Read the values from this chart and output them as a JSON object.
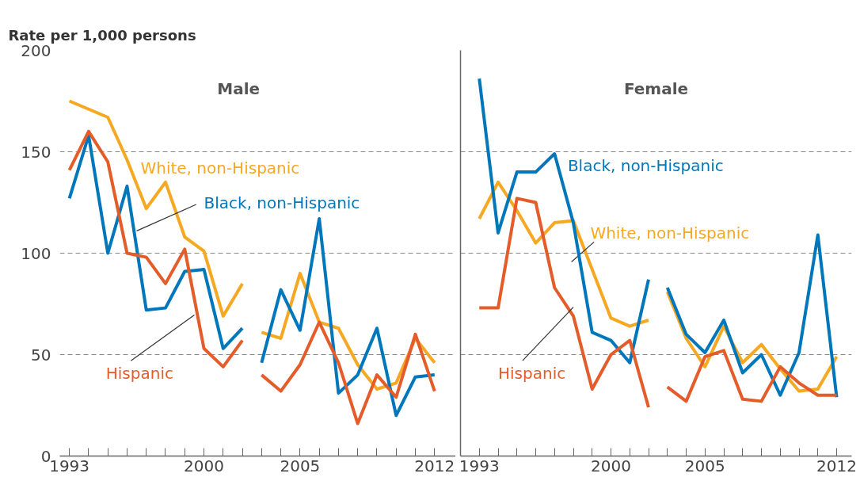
{
  "chart_data": [
    {
      "type": "line",
      "title": "Male",
      "ylabel": "Rate per 1,000 persons",
      "xlim": [
        1992.5,
        2013.1
      ],
      "xticks": [
        1993,
        {
          "value": 1994,
          "label": null
        },
        {
          "value": 1995,
          "label": null
        },
        {
          "value": 1996,
          "label": null
        },
        {
          "value": 1997,
          "label": null
        },
        {
          "value": 1998,
          "label": null
        },
        {
          "value": 1999,
          "label": null
        },
        2000,
        {
          "value": 2001,
          "label": null
        },
        {
          "value": 2002,
          "label": null
        },
        {
          "value": 2003,
          "label": null
        },
        {
          "value": 2004,
          "label": null
        },
        2005,
        {
          "value": 2006,
          "label": null
        },
        {
          "value": 2007,
          "label": null
        },
        {
          "value": 2008,
          "label": null
        },
        {
          "value": 2009,
          "label": null
        },
        {
          "value": 2010,
          "label": null
        },
        {
          "value": 2011,
          "label": null
        },
        2012
      ],
      "ylim": [
        0,
        200
      ],
      "yticks": [
        0,
        50,
        100,
        150,
        200
      ],
      "grid": "y",
      "line_style": "solid",
      "series": [
        {
          "name": "White, non-Hispanic",
          "color": "#f7a823",
          "x": [
            1993,
            1994,
            1995,
            1996,
            1997,
            1998,
            1999,
            2000,
            2001,
            2002
          ],
          "values": [
            175,
            171,
            167,
            146,
            122,
            135,
            108,
            101,
            69,
            85
          ]
        },
        {
          "name": "Black, non-Hispanic",
          "color": "#0077bb",
          "x": [
            1993,
            1994,
            1995,
            1996,
            1997,
            1998,
            1999,
            2000,
            2001,
            2002
          ],
          "values": [
            127,
            158,
            100,
            133,
            72,
            73,
            91,
            92,
            53,
            63
          ]
        },
        {
          "name": "Hispanic",
          "color": "#e35c29",
          "x": [
            1993,
            1994,
            1995,
            1996,
            1997,
            1998,
            1999,
            2000,
            2001,
            2002
          ],
          "values": [
            141,
            160,
            145,
            100,
            98,
            85,
            102,
            53,
            44,
            57
          ]
        },
        {
          "color": "#f7a823",
          "x": [
            2003,
            2004,
            2005,
            2006,
            2007,
            2008,
            2009,
            2010,
            2011,
            2012
          ],
          "values": [
            61,
            58,
            90,
            66,
            63,
            45,
            33,
            36,
            58,
            46
          ]
        },
        {
          "color": "#0077bb",
          "x": [
            2003,
            2004,
            2005,
            2006,
            2007,
            2008,
            2009,
            2010,
            2011,
            2012
          ],
          "values": [
            46,
            82,
            62,
            117,
            31,
            40,
            63,
            20,
            39,
            40
          ]
        },
        {
          "color": "#e35c29",
          "x": [
            2003,
            2004,
            2005,
            2006,
            2007,
            2008,
            2009,
            2010,
            2011,
            2012
          ],
          "values": [
            40,
            32,
            45,
            66,
            46,
            16,
            40,
            29,
            60,
            32
          ]
        }
      ]
    },
    {
      "type": "line",
      "title": "Female",
      "xlim": [
        1992.0,
        2012.8
      ],
      "xticks": [
        1993,
        {
          "value": 1994,
          "label": null
        },
        {
          "value": 1995,
          "label": null
        },
        {
          "value": 1996,
          "label": null
        },
        {
          "value": 1997,
          "label": null
        },
        {
          "value": 1998,
          "label": null
        },
        {
          "value": 1999,
          "label": null
        },
        2000,
        {
          "value": 2001,
          "label": null
        },
        {
          "value": 2002,
          "label": null
        },
        {
          "value": 2003,
          "label": null
        },
        {
          "value": 2004,
          "label": null
        },
        2005,
        {
          "value": 2006,
          "label": null
        },
        {
          "value": 2007,
          "label": null
        },
        {
          "value": 2008,
          "label": null
        },
        {
          "value": 2009,
          "label": null
        },
        {
          "value": 2010,
          "label": null
        },
        {
          "value": 2011,
          "label": null
        },
        2012
      ],
      "ylim": [
        0,
        200
      ],
      "yticks": [
        0,
        50,
        100,
        150,
        200
      ],
      "grid": "y",
      "tick_labels": "x",
      "line_style": "solid",
      "series": [
        {
          "name": "White, non-Hispanic",
          "color": "#f7a823",
          "x": [
            1993,
            1994,
            1995,
            1996,
            1997,
            1998,
            1999,
            2000,
            2001,
            2002
          ],
          "values": [
            117,
            135,
            121,
            105,
            115,
            116,
            92,
            68,
            64,
            67
          ]
        },
        {
          "name": "Black, non-Hispanic",
          "color": "#0077bb",
          "x": [
            1993,
            1994,
            1995,
            1996,
            1997,
            1998,
            1999,
            2000,
            2001,
            2002
          ],
          "values": [
            186,
            110,
            140,
            140,
            149,
            115,
            61,
            57,
            46,
            87
          ]
        },
        {
          "name": "Hispanic",
          "color": "#e35c29",
          "x": [
            1993,
            1994,
            1995,
            1996,
            1997,
            1998,
            1999,
            2000,
            2001,
            2002
          ],
          "values": [
            73,
            73,
            127,
            125,
            83,
            69,
            33,
            50,
            57,
            24
          ]
        },
        {
          "color": "#f7a823",
          "x": [
            2003,
            2004,
            2005,
            2006,
            2007,
            2008,
            2009,
            2010,
            2011,
            2012
          ],
          "values": [
            81,
            58,
            44,
            64,
            46,
            55,
            43,
            32,
            33,
            49
          ]
        },
        {
          "color": "#0077bb",
          "x": [
            2003,
            2004,
            2005,
            2006,
            2007,
            2008,
            2009,
            2010,
            2011,
            2012
          ],
          "values": [
            83,
            60,
            51,
            67,
            41,
            50,
            30,
            51,
            109,
            29
          ]
        },
        {
          "color": "#e35c29",
          "x": [
            2003,
            2004,
            2005,
            2006,
            2007,
            2008,
            2009,
            2010,
            2011,
            2012
          ],
          "values": [
            34,
            27,
            49,
            52,
            28,
            27,
            44,
            36,
            30,
            30
          ]
        }
      ]
    }
  ]
}
